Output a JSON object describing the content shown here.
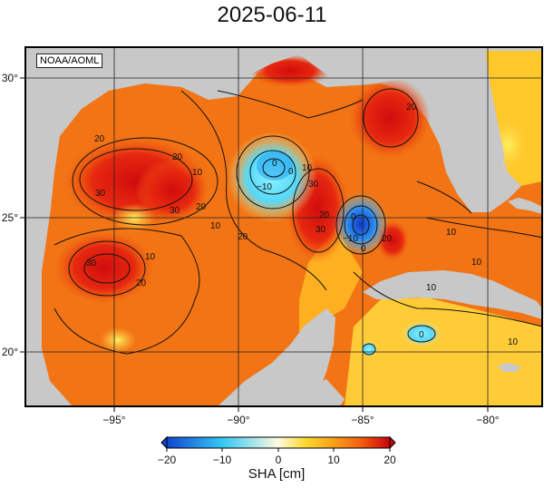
{
  "title": "2025-06-11",
  "credit": "NOAA/AOML",
  "map": {
    "lon_ticks": [
      "−95°",
      "−90°",
      "−85°",
      "−80°"
    ],
    "lat_ticks": [
      "30°",
      "25°",
      "20°"
    ],
    "contour_labels": [
      "20",
      "20",
      "20",
      "30",
      "30",
      "30",
      "10",
      "10",
      "0",
      "0",
      "−10",
      "−10",
      "10",
      "10",
      "20",
      "30",
      "30",
      "20",
      "20",
      "20",
      "10",
      "10",
      "10",
      "10",
      "20",
      "0",
      "0",
      "0"
    ]
  },
  "colorbar": {
    "label": "SHA [cm]",
    "ticks": [
      "−20",
      "−10",
      "0",
      "10",
      "20"
    ],
    "range": [
      -20,
      20
    ]
  },
  "colors": {
    "land": "#c8c8c8",
    "strong_positive": "#e01b12",
    "positive": "#f57c0e",
    "weak_positive": "#ffe135",
    "negative": "#35c8f5",
    "strong_negative": "#1046d0"
  }
}
